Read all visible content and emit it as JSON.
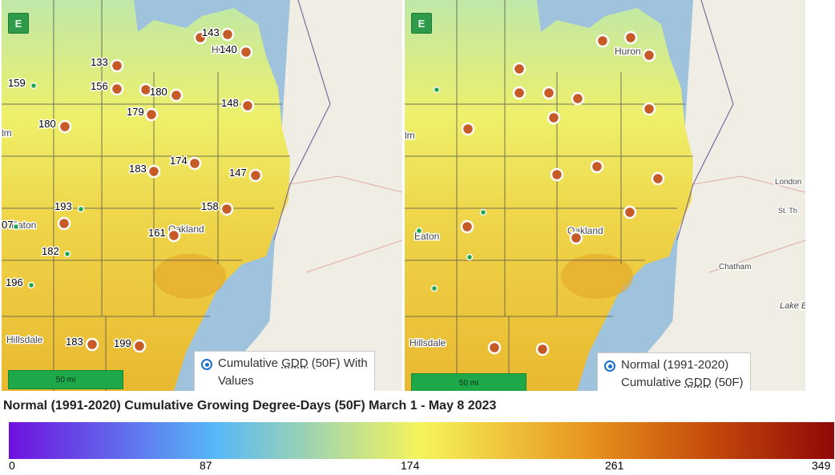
{
  "left_panel": {
    "expand_label": "E",
    "scale_label": "50 mi",
    "legend_text": [
      "Cumulative ",
      "GDD",
      " (50F) With",
      "Values"
    ],
    "place_labels": [
      "Huron",
      "Eaton",
      "Oakland",
      "Hillsdale",
      "lm",
      "07"
    ],
    "stations": [
      {
        "value": "143",
        "kind": "major"
      },
      {
        "value": "140",
        "kind": "major"
      },
      {
        "value": "133",
        "kind": "major"
      },
      {
        "value": "156",
        "kind": "major"
      },
      {
        "value": "180",
        "kind": "major"
      },
      {
        "value": "148",
        "kind": "major"
      },
      {
        "value": "180",
        "kind": "major"
      },
      {
        "value": "179",
        "kind": "major"
      },
      {
        "value": "183",
        "kind": "major"
      },
      {
        "value": "174",
        "kind": "major"
      },
      {
        "value": "147",
        "kind": "major"
      },
      {
        "value": "158",
        "kind": "major"
      },
      {
        "value": "161",
        "kind": "major"
      },
      {
        "value": "183",
        "kind": "major"
      },
      {
        "value": "199",
        "kind": "major"
      },
      {
        "value": "159",
        "kind": "minor"
      },
      {
        "value": "193",
        "kind": "minor"
      },
      {
        "value": "182",
        "kind": "minor"
      },
      {
        "value": "196",
        "kind": "minor"
      }
    ]
  },
  "right_panel": {
    "expand_label": "E",
    "scale_label": "50 mi",
    "legend_text": [
      "Normal (1991-2020)",
      "Cumulative ",
      "GDD",
      " (50F)"
    ],
    "place_labels": [
      "Huron",
      "Eaton",
      "Oakland",
      "Hillsdale",
      "London",
      "Chatham",
      "St. Th",
      "Lake E",
      "lm"
    ]
  },
  "colorbar": {
    "title": "Normal (1991-2020) Cumulative Growing Degree-Days (50F) March 1 - May 8 2023",
    "ticks": [
      "0",
      "87",
      "174",
      "261",
      "349"
    ],
    "colors": {
      "min": "#6f10de",
      "low": "#56b8f8",
      "mid": "#f6f45a",
      "high": "#e8951e",
      "max": "#900808"
    }
  },
  "colors": {
    "water": "#9fc3dc",
    "land": "#f0eee4",
    "major_marker": "#c75b27",
    "minor_marker": "#1fa84a"
  }
}
